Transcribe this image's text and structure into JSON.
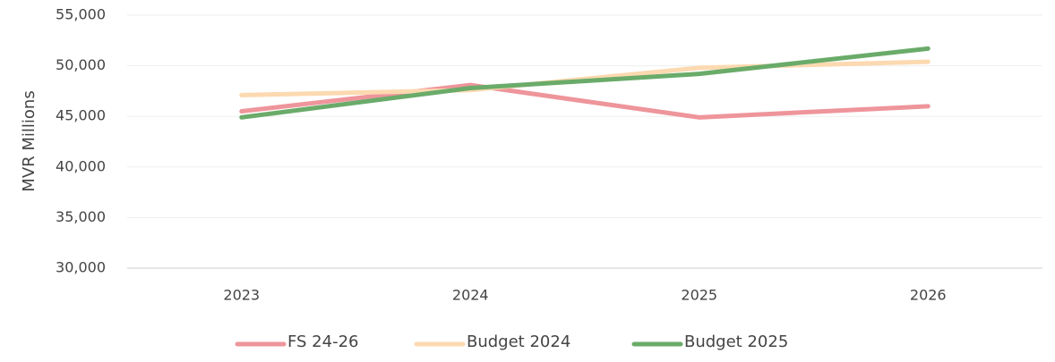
{
  "chart_data": {
    "type": "line",
    "y_label": "MVR Millions",
    "categories": [
      "2023",
      "2024",
      "2025",
      "2026"
    ],
    "series": [
      {
        "name": "FS 24-26",
        "color": "#ee959b",
        "values": [
          45500,
          48100,
          44900,
          46000
        ]
      },
      {
        "name": "Budget 2024",
        "color": "#fcd9b0",
        "values": [
          47100,
          47600,
          49800,
          50400
        ]
      },
      {
        "name": "Budget 2025",
        "color": "#6aab6a",
        "values": [
          44900,
          47800,
          49200,
          51700
        ]
      }
    ],
    "ylim": [
      30000,
      55000
    ],
    "yticks": [
      {
        "value": 30000,
        "label": "30,000"
      },
      {
        "value": 35000,
        "label": "35,000"
      },
      {
        "value": 40000,
        "label": "40,000"
      },
      {
        "value": 45000,
        "label": "45,000"
      },
      {
        "value": 50000,
        "label": "50,000"
      },
      {
        "value": 55000,
        "label": "55,000"
      }
    ],
    "grid": true,
    "legend": "bottom"
  }
}
